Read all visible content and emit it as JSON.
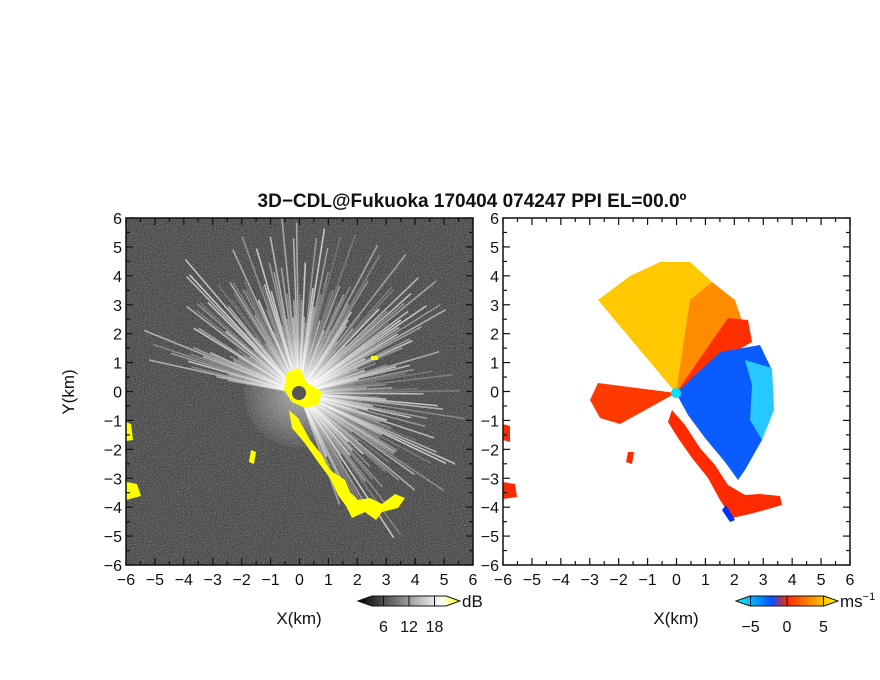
{
  "title": "3D−CDL@Fukuoka 170404 074247 PPI EL=00.0º",
  "chart_data": [
    {
      "type": "heatmap",
      "panel": "left",
      "quantity": "reflectivity",
      "xlabel": "X(km)",
      "ylabel": "Y(km)",
      "xlim": [
        -6,
        6
      ],
      "ylim": [
        -6,
        6
      ],
      "x_ticks": [
        "−6",
        "−5",
        "−4",
        "−3",
        "−2",
        "−1",
        "0",
        "1",
        "2",
        "3",
        "4",
        "5",
        "6"
      ],
      "y_ticks": [
        "6",
        "5",
        "4",
        "3",
        "2",
        "1",
        "0",
        "−1",
        "−2",
        "−3",
        "−4",
        "−5",
        "−6"
      ],
      "colorbar": {
        "unit": "dB",
        "tick_labels": [
          "6",
          "12",
          "18"
        ],
        "tick_values": [
          6,
          12,
          18
        ],
        "range": [
          0,
          24
        ],
        "colors": [
          "#000000",
          "#ffffff",
          "#ffff00"
        ]
      },
      "background_color": "#2a2a2a",
      "highlight_color": "#ffff00"
    },
    {
      "type": "heatmap",
      "panel": "right",
      "quantity": "radial velocity",
      "xlabel": "X(km)",
      "ylabel": "",
      "xlim": [
        -6,
        6
      ],
      "ylim": [
        -6,
        6
      ],
      "x_ticks": [
        "−6",
        "−5",
        "−4",
        "−3",
        "−2",
        "−1",
        "0",
        "1",
        "2",
        "3",
        "4",
        "5",
        "6"
      ],
      "y_ticks": [
        "6",
        "5",
        "4",
        "3",
        "2",
        "1",
        "0",
        "−1",
        "−2",
        "−3",
        "−4",
        "−5",
        "−6"
      ],
      "colorbar": {
        "unit": "ms",
        "unit_exp": "−1",
        "tick_labels": [
          "−5",
          "0",
          "5"
        ],
        "tick_values": [
          -5,
          0,
          5
        ],
        "range": [
          -7,
          7
        ],
        "colors": [
          "#00ffff",
          "#0050ff",
          "#ff2a00",
          "#ffff00"
        ]
      },
      "background_color": "#ffffff"
    }
  ]
}
